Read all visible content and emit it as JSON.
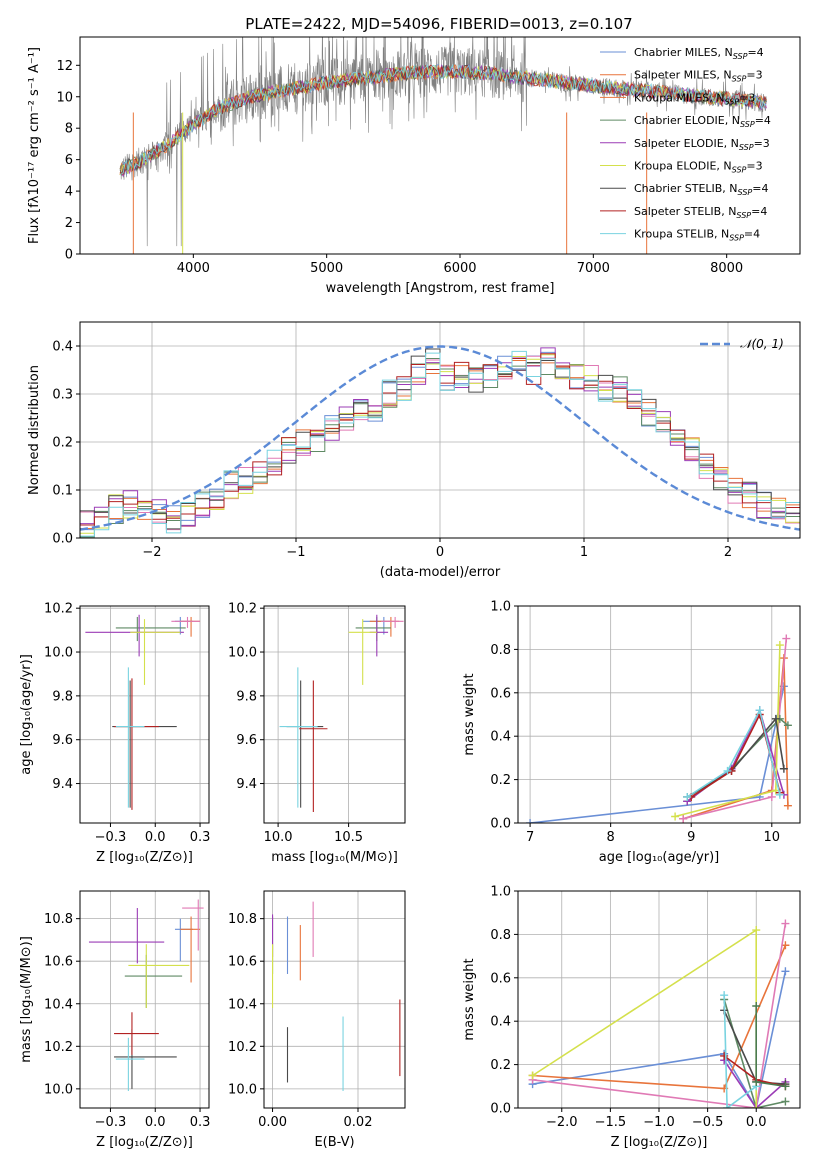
{
  "figure": {
    "title": "PLATE=2422, MJD=54096, FIBERID=0013, z=0.107"
  },
  "chart_data": [
    {
      "id": "spectrum",
      "type": "line",
      "title": "PLATE=2422, MJD=54096, FIBERID=0013, z=0.107",
      "xlabel": "wavelength [Angstrom, rest frame]",
      "ylabel": "Flux [fλ10⁻¹⁷ erg cm⁻² s⁻¹ A⁻¹]",
      "xlim": [
        3150,
        8550
      ],
      "ylim": [
        0,
        13.8
      ],
      "xticks": [
        4000,
        5000,
        6000,
        7000,
        8000
      ],
      "yticks": [
        0,
        2,
        4,
        6,
        8,
        10,
        12
      ],
      "grid": false,
      "legend_position": "upper-right",
      "data_color": "#808080",
      "continuum_x": [
        3450,
        3600,
        3800,
        4000,
        4200,
        4400,
        4600,
        4800,
        5000,
        5200,
        5400,
        5600,
        5800,
        6000,
        6200,
        6400,
        6600,
        6800,
        7000,
        7200,
        7400,
        7600,
        7800,
        8000,
        8200,
        8300
      ],
      "continuum_y": [
        5.3,
        5.9,
        6.9,
        8.2,
        9.3,
        9.9,
        10.3,
        10.6,
        10.9,
        11.1,
        11.3,
        11.5,
        11.6,
        11.6,
        11.5,
        11.3,
        11.1,
        10.9,
        10.7,
        10.5,
        10.4,
        10.2,
        10.0,
        9.9,
        9.7,
        9.6
      ],
      "series": [
        {
          "name": "Chabrier MILES, N_SSP=4",
          "color": "#6a8fd6"
        },
        {
          "name": "Salpeter MILES, N_SSP=3",
          "color": "#e8743b"
        },
        {
          "name": "Kroupa MILES, N_SSP=3",
          "color": "#e8743b"
        },
        {
          "name": "Chabrier ELODIE, N_SSP=4",
          "color": "#5f8a64"
        },
        {
          "name": "Salpeter ELODIE, N_SSP=3",
          "color": "#9b3cb6"
        },
        {
          "name": "Kroupa ELODIE, N_SSP=3",
          "color": "#d4e04c"
        },
        {
          "name": "Chabrier STELIB, N_SSP=4",
          "color": "#4a4a4a"
        },
        {
          "name": "Salpeter STELIB, N_SSP=4",
          "color": "#b22222"
        },
        {
          "name": "Kroupa STELIB, N_SSP=4",
          "color": "#79d3e0"
        }
      ]
    },
    {
      "id": "residuals",
      "type": "line",
      "xlabel": "(data-model)/error",
      "ylabel": "Normed distribution",
      "xlim": [
        -2.5,
        2.5
      ],
      "ylim": [
        0,
        0.45
      ],
      "xticks": [
        -2,
        -1,
        0,
        1,
        2
      ],
      "yticks": [
        0.0,
        0.1,
        0.2,
        0.3,
        0.4
      ],
      "grid": true,
      "legend_position": "upper-right",
      "legend_label": "𝒩(0, 1)",
      "gaussian": {
        "mean": 0,
        "sigma": 1,
        "color": "#5b8ad6"
      },
      "hist_bins_start": -2.5,
      "hist_bin_width": 0.1,
      "hist_colors": [
        "#6a8fd6",
        "#e8743b",
        "#e07ab5",
        "#5f8a64",
        "#9b3cb6",
        "#d4e04c",
        "#4a4a4a",
        "#b22222",
        "#79d3e0"
      ],
      "hist_envelope": [
        0.03,
        0.04,
        0.06,
        0.07,
        0.05,
        0.05,
        0.04,
        0.05,
        0.07,
        0.08,
        0.11,
        0.12,
        0.13,
        0.16,
        0.18,
        0.2,
        0.21,
        0.23,
        0.25,
        0.26,
        0.27,
        0.3,
        0.31,
        0.35,
        0.37,
        0.33,
        0.34,
        0.33,
        0.34,
        0.35,
        0.36,
        0.35,
        0.37,
        0.36,
        0.34,
        0.33,
        0.31,
        0.31,
        0.28,
        0.26,
        0.24,
        0.2,
        0.18,
        0.15,
        0.12,
        0.1,
        0.09,
        0.07,
        0.06,
        0.05
      ]
    },
    {
      "id": "age-vs-Z",
      "type": "scatter",
      "xlabel": "Z [log₁₀(Z/Z⊙)]",
      "ylabel": "age  [log₁₀(age/yr)]",
      "xlim": [
        -0.42,
        0.3
      ],
      "ylim": [
        9.22,
        10.21
      ],
      "xticks": [
        -0.25,
        0.0,
        0.25
      ],
      "yticks": [
        9.4,
        9.6,
        9.8,
        10.0,
        10.2
      ],
      "grid": true,
      "points": [
        {
          "color": "#6a8fd6",
          "x": 0.14,
          "xerr": [
            0.03,
            0.07
          ],
          "y": 10.14,
          "yerr": [
            0.06,
            0.02
          ]
        },
        {
          "color": "#e8743b",
          "x": 0.2,
          "xerr": [
            0.06,
            0.05
          ],
          "y": 10.14,
          "yerr": [
            0.07,
            0.02
          ]
        },
        {
          "color": "#e07ab5",
          "x": 0.18,
          "xerr": [
            0.09,
            0.07
          ],
          "y": 10.14,
          "yerr": [
            0.03,
            0.02
          ]
        },
        {
          "color": "#5f8a64",
          "x": -0.1,
          "xerr": [
            0.12,
            0.27
          ],
          "y": 10.11,
          "yerr": [
            0.06,
            0.05
          ]
        },
        {
          "color": "#9b3cb6",
          "x": -0.09,
          "xerr": [
            0.3,
            0.25
          ],
          "y": 10.09,
          "yerr": [
            0.11,
            0.08
          ]
        },
        {
          "color": "#d4e04c",
          "x": -0.06,
          "xerr": [
            0.08,
            0.2
          ],
          "y": 10.09,
          "yerr": [
            0.24,
            0.06
          ]
        },
        {
          "color": "#4a4a4a",
          "x": -0.14,
          "xerr": [
            0.1,
            0.26
          ],
          "y": 9.66,
          "yerr": [
            0.37,
            0.21
          ]
        },
        {
          "color": "#b22222",
          "x": -0.13,
          "xerr": [
            0.1,
            0.15
          ],
          "y": 9.66,
          "yerr": [
            0.38,
            0.22
          ]
        },
        {
          "color": "#79d3e0",
          "x": -0.15,
          "xerr": [
            0.07,
            0.09
          ],
          "y": 9.66,
          "yerr": [
            0.37,
            0.27
          ]
        }
      ]
    },
    {
      "id": "age-vs-mass",
      "type": "scatter",
      "xlabel": "mass [log₁₀(M/M⊙)]",
      "ylabel": "",
      "xlim": [
        9.9,
        10.9
      ],
      "ylim": [
        9.22,
        10.21
      ],
      "xticks": [
        10.0,
        10.5
      ],
      "yticks": [
        9.4,
        9.6,
        9.8,
        10.0,
        10.2
      ],
      "grid": true,
      "points": [
        {
          "color": "#6a8fd6",
          "x": 10.75,
          "xerr": [
            0.15,
            0.05
          ],
          "y": 10.14,
          "yerr": [
            0.06,
            0.02
          ]
        },
        {
          "color": "#e8743b",
          "x": 10.8,
          "xerr": [
            0.15,
            0.06
          ],
          "y": 10.14,
          "yerr": [
            0.07,
            0.02
          ]
        },
        {
          "color": "#e07ab5",
          "x": 10.83,
          "xerr": [
            0.1,
            0.06
          ],
          "y": 10.14,
          "yerr": [
            0.03,
            0.02
          ]
        },
        {
          "color": "#5f8a64",
          "x": 10.7,
          "xerr": [
            0.15,
            0.1
          ],
          "y": 10.11,
          "yerr": [
            0.06,
            0.05
          ]
        },
        {
          "color": "#9b3cb6",
          "x": 10.7,
          "xerr": [
            0.05,
            0.08
          ],
          "y": 10.09,
          "yerr": [
            0.11,
            0.08
          ]
        },
        {
          "color": "#d4e04c",
          "x": 10.6,
          "xerr": [
            0.1,
            0.1
          ],
          "y": 10.09,
          "yerr": [
            0.24,
            0.06
          ]
        },
        {
          "color": "#4a4a4a",
          "x": 10.16,
          "xerr": [
            0.1,
            0.16
          ],
          "y": 9.66,
          "yerr": [
            0.37,
            0.21
          ]
        },
        {
          "color": "#b22222",
          "x": 10.25,
          "xerr": [
            0.1,
            0.1
          ],
          "y": 9.65,
          "yerr": [
            0.38,
            0.22
          ]
        },
        {
          "color": "#79d3e0",
          "x": 10.14,
          "xerr": [
            0.13,
            0.14
          ],
          "y": 9.66,
          "yerr": [
            0.37,
            0.27
          ]
        }
      ]
    },
    {
      "id": "weight-vs-age",
      "type": "line",
      "xlabel": "age  [log₁₀(age/yr)]",
      "ylabel": "mass weight",
      "xlim": [
        6.85,
        10.35
      ],
      "ylim": [
        0,
        1.0
      ],
      "xticks": [
        7,
        8,
        9,
        10
      ],
      "yticks": [
        0.0,
        0.2,
        0.4,
        0.6,
        0.8,
        1.0
      ],
      "grid": true,
      "series": [
        {
          "color": "#6a8fd6",
          "x": [
            7.0,
            9.85,
            10.15
          ],
          "y": [
            0.0,
            0.12,
            0.63
          ]
        },
        {
          "color": "#e8743b",
          "x": [
            8.9,
            10.0,
            10.15,
            10.2
          ],
          "y": [
            0.02,
            0.15,
            0.76,
            0.08
          ]
        },
        {
          "color": "#e07ab5",
          "x": [
            8.9,
            10.0,
            10.18
          ],
          "y": [
            0.02,
            0.12,
            0.85
          ]
        },
        {
          "color": "#5f8a64",
          "x": [
            8.95,
            9.5,
            10.1,
            10.2
          ],
          "y": [
            0.1,
            0.25,
            0.48,
            0.45
          ]
        },
        {
          "color": "#9b3cb6",
          "x": [
            8.95,
            9.5,
            9.85,
            10.15
          ],
          "y": [
            0.1,
            0.25,
            0.52,
            0.13
          ]
        },
        {
          "color": "#d4e04c",
          "x": [
            8.8,
            10.05,
            10.1
          ],
          "y": [
            0.03,
            0.15,
            0.82
          ]
        },
        {
          "color": "#4a4a4a",
          "x": [
            8.95,
            9.5,
            10.05,
            10.15
          ],
          "y": [
            0.12,
            0.24,
            0.48,
            0.25
          ]
        },
        {
          "color": "#b22222",
          "x": [
            9.0,
            9.5,
            9.85,
            10.1
          ],
          "y": [
            0.12,
            0.24,
            0.5,
            0.14
          ]
        },
        {
          "color": "#79d3e0",
          "x": [
            8.95,
            9.45,
            9.85,
            10.1
          ],
          "y": [
            0.12,
            0.24,
            0.52,
            0.13
          ]
        }
      ]
    },
    {
      "id": "mass-vs-Z",
      "type": "scatter",
      "xlabel": "Z [log₁₀(Z/Z⊙)]",
      "ylabel": "mass [log₁₀(M/M⊙)]",
      "xlim": [
        -0.42,
        0.3
      ],
      "ylim": [
        9.91,
        10.93
      ],
      "xticks": [
        -0.25,
        0.0,
        0.25
      ],
      "yticks": [
        10.0,
        10.2,
        10.4,
        10.6,
        10.8
      ],
      "grid": true,
      "points": [
        {
          "color": "#6a8fd6",
          "x": 0.14,
          "xerr": [
            0.03,
            0.07
          ],
          "y": 10.75,
          "yerr": [
            0.15,
            0.05
          ]
        },
        {
          "color": "#e8743b",
          "x": 0.2,
          "xerr": [
            0.06,
            0.05
          ],
          "y": 10.75,
          "yerr": [
            0.25,
            0.06
          ]
        },
        {
          "color": "#e07ab5",
          "x": 0.24,
          "xerr": [
            0.09,
            0.03
          ],
          "y": 10.85,
          "yerr": [
            0.2,
            0.04
          ]
        },
        {
          "color": "#5f8a64",
          "x": -0.05,
          "xerr": [
            0.12,
            0.2
          ],
          "y": 10.53,
          "yerr": [
            0.15,
            0.1
          ]
        },
        {
          "color": "#9b3cb6",
          "x": -0.1,
          "xerr": [
            0.27,
            0.15
          ],
          "y": 10.69,
          "yerr": [
            0.1,
            0.16
          ]
        },
        {
          "color": "#d4e04c",
          "x": -0.05,
          "xerr": [
            0.1,
            0.24
          ],
          "y": 10.58,
          "yerr": [
            0.2,
            0.1
          ]
        },
        {
          "color": "#4a4a4a",
          "x": -0.13,
          "xerr": [
            0.1,
            0.25
          ],
          "y": 10.15,
          "yerr": [
            0.15,
            0.13
          ]
        },
        {
          "color": "#b22222",
          "x": -0.13,
          "xerr": [
            0.1,
            0.15
          ],
          "y": 10.26,
          "yerr": [
            0.1,
            0.1
          ]
        },
        {
          "color": "#79d3e0",
          "x": -0.15,
          "xerr": [
            0.07,
            0.09
          ],
          "y": 10.14,
          "yerr": [
            0.15,
            0.1
          ]
        }
      ]
    },
    {
      "id": "mass-vs-EBV",
      "type": "scatter",
      "xlabel": "E(B-V)",
      "ylabel": "",
      "xlim": [
        -0.002,
        0.031
      ],
      "ylim": [
        9.91,
        10.93
      ],
      "xticks": [
        0.0,
        0.02
      ],
      "yticks": [
        10.0,
        10.2,
        10.4,
        10.6,
        10.8
      ],
      "grid": true,
      "points": [
        {
          "color": "#6a8fd6",
          "x": 0.0035,
          "y": 10.69,
          "yerr": [
            0.15,
            0.12
          ]
        },
        {
          "color": "#e8743b",
          "x": 0.0065,
          "y": 10.63,
          "yerr": [
            0.12,
            0.14
          ]
        },
        {
          "color": "#e07ab5",
          "x": 0.0095,
          "y": 10.75,
          "yerr": [
            0.13,
            0.13
          ]
        },
        {
          "color": "#5f8a64",
          "x": 0.0,
          "y": 10.69,
          "yerr": [
            0.15,
            0.12
          ]
        },
        {
          "color": "#9b3cb6",
          "x": 0.0,
          "y": 10.72,
          "yerr": [
            0.1,
            0.1
          ]
        },
        {
          "color": "#d4e04c",
          "x": 0.0,
          "y": 10.58,
          "yerr": [
            0.2,
            0.1
          ]
        },
        {
          "color": "#4a4a4a",
          "x": 0.0035,
          "y": 10.15,
          "yerr": [
            0.12,
            0.14
          ]
        },
        {
          "color": "#b22222",
          "x": 0.0298,
          "y": 10.24,
          "yerr": [
            0.18,
            0.18
          ]
        },
        {
          "color": "#79d3e0",
          "x": 0.0165,
          "y": 10.14,
          "yerr": [
            0.15,
            0.2
          ]
        }
      ]
    },
    {
      "id": "weight-vs-Z",
      "type": "line",
      "xlabel": "Z [log₁₀(Z/Z⊙)]",
      "ylabel": "mass weight",
      "xlim": [
        -2.45,
        0.45
      ],
      "ylim": [
        0,
        1.0
      ],
      "xticks": [
        -2.0,
        -1.5,
        -1.0,
        -0.5,
        0.0
      ],
      "yticks": [
        0.0,
        0.2,
        0.4,
        0.6,
        0.8,
        1.0
      ],
      "grid": true,
      "series": [
        {
          "color": "#6a8fd6",
          "x": [
            -2.3,
            -0.33,
            0.0,
            0.3
          ],
          "y": [
            0.11,
            0.25,
            0.0,
            0.63
          ]
        },
        {
          "color": "#e8743b",
          "x": [
            -2.3,
            -0.33,
            0.3
          ],
          "y": [
            0.15,
            0.09,
            0.75
          ]
        },
        {
          "color": "#e07ab5",
          "x": [
            -2.3,
            0.0,
            0.3
          ],
          "y": [
            0.13,
            0.0,
            0.85
          ]
        },
        {
          "color": "#5f8a64",
          "x": [
            -0.33,
            0.0,
            0.3
          ],
          "y": [
            0.5,
            0.0,
            0.03
          ]
        },
        {
          "color": "#9b3cb6",
          "x": [
            -0.33,
            0.0,
            0.3
          ],
          "y": [
            0.22,
            0.0,
            0.12
          ]
        },
        {
          "color": "#d4e04c",
          "x": [
            -2.3,
            0.0,
            0.0
          ],
          "y": [
            0.15,
            0.82,
            0.0
          ]
        },
        {
          "color": "#4a4a4a",
          "x": [
            -0.33,
            0.0,
            0.3
          ],
          "y": [
            0.45,
            0.12,
            0.11
          ]
        },
        {
          "color": "#b22222",
          "x": [
            -0.33,
            0.0,
            0.3
          ],
          "y": [
            0.24,
            0.13,
            0.1
          ]
        },
        {
          "color": "#79d3e0",
          "x": [
            -0.33,
            -0.3,
            0.0
          ],
          "y": [
            0.52,
            0.0,
            0.1
          ]
        },
        {
          "color": "#4a7a50",
          "x": [
            0.0,
            0.0,
            0.3
          ],
          "y": [
            0.47,
            0.12,
            0.1
          ]
        }
      ]
    }
  ]
}
